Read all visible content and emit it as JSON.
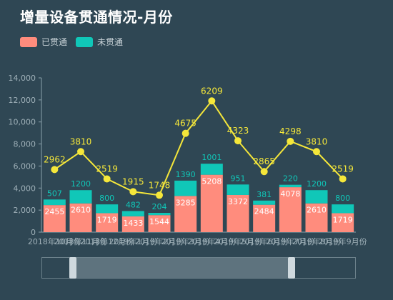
{
  "title": "增量设备贯通情况-月份",
  "legend": {
    "through": {
      "label": "已贯通",
      "color": "#ff8c7d"
    },
    "not_through": {
      "label": "未贯通",
      "color": "#10c7b8"
    }
  },
  "chart_data": {
    "type": "bar",
    "categories": [
      "2018年10月份",
      "2018年11月份",
      "2018年12月份",
      "2019年1月份",
      "2019年2月份",
      "2019年3月份",
      "2019年4月份",
      "2019年5月份",
      "2019年6月份",
      "2019年7月份",
      "2019年8月份",
      "2019年9月份"
    ],
    "tick_labels": [
      "2018年10月份",
      "2018年11月份",
      "2018年12月份",
      "2019年1月份",
      "2019年2月份",
      "2019年3月份",
      "2019年4月份",
      "2019年5月份",
      "2019年6月份",
      "2019年7月份",
      "2019年8月份",
      "2019年9月份"
    ],
    "series": [
      {
        "name": "已贯通",
        "type": "bar",
        "stack": "total",
        "color": "#ff8c7d",
        "values": [
          2455,
          2610,
          1719,
          1433,
          1544,
          3285,
          5208,
          3372,
          2484,
          4078,
          2610,
          1719
        ]
      },
      {
        "name": "未贯通",
        "type": "bar",
        "stack": "total",
        "color": "#10c7b8",
        "values": [
          507,
          1200,
          800,
          482,
          204,
          1390,
          1001,
          951,
          381,
          220,
          1200,
          800
        ]
      },
      {
        "name": "",
        "type": "line",
        "color": "#f5e73a",
        "values": [
          2962,
          3810,
          2519,
          1915,
          1748,
          4675,
          6209,
          4323,
          2865,
          4298,
          3810,
          2519
        ]
      }
    ],
    "ylim": [
      0,
      14000
    ],
    "yticks": [
      "0",
      "2,000",
      "4,000",
      "6,000",
      "8,000",
      "10,000",
      "12,000",
      "14,000"
    ],
    "line_axis_max": 7300,
    "grid": false,
    "legend_position": "top-left",
    "zoom_slider": {
      "start": 0.1,
      "end": 0.8
    }
  }
}
